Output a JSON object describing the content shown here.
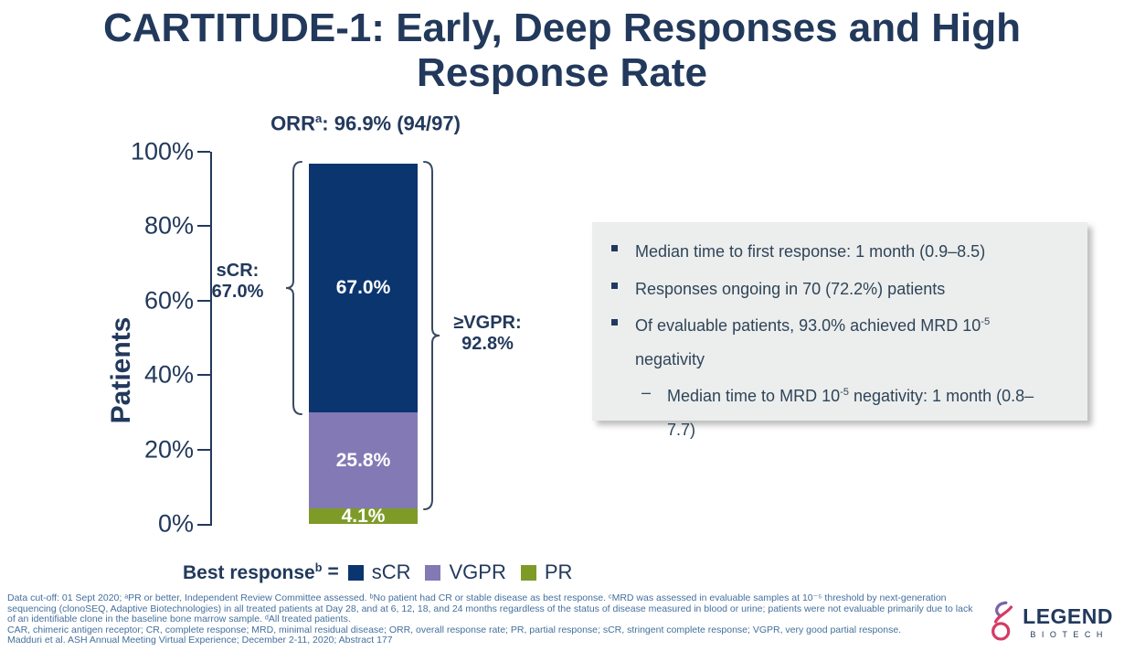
{
  "slide": {
    "title": "CARTITUDE-1: Early, Deep Responses and High Response Rate"
  },
  "chart": {
    "orr": {
      "text": "ORR",
      "sup": "a",
      "rest": ": 96.9% (94/97)"
    },
    "ylabel": "Patients",
    "yticks": [
      "100%",
      "80%",
      "60%",
      "40%",
      "20%",
      "0%"
    ],
    "bracket_left": {
      "line1": "sCR:",
      "line2": "67.0%"
    },
    "bracket_right": {
      "line1": "≥VGPR:",
      "line2": "92.8%"
    }
  },
  "chart_data": {
    "type": "bar",
    "stacked": true,
    "categories": [
      "Best response"
    ],
    "series": [
      {
        "name": "sCR",
        "values": [
          67.0
        ],
        "label": "67.0%",
        "color": "#0B356F"
      },
      {
        "name": "VGPR",
        "values": [
          25.8
        ],
        "label": "25.8%",
        "color": "#8379B5"
      },
      {
        "name": "PR",
        "values": [
          4.1
        ],
        "label": "4.1%",
        "color": "#7E9B28"
      }
    ],
    "title": "ORRᵃ: 96.9% (94/97)",
    "xlabel": "",
    "ylabel": "Patients",
    "ylim": [
      0,
      100
    ],
    "yticks_percent": [
      0,
      20,
      40,
      60,
      80,
      100
    ],
    "grid": false,
    "legend_position": "bottom",
    "annotations": [
      {
        "target": "sCR segment",
        "text": "sCR: 67.0%"
      },
      {
        "target": "sCR+VGPR segments",
        "text": "≥VGPR: 92.8%"
      },
      {
        "target": "total bar",
        "text": "ORRᵃ: 96.9% (94/97)"
      }
    ]
  },
  "infobox": {
    "bullets": [
      {
        "pre": "Median time to first response: 1 month (0.9–8.5)",
        "sup": "",
        "post": ""
      },
      {
        "pre": "Responses ongoing in 70 (72.2%) patients",
        "sup": "",
        "post": ""
      },
      {
        "pre": "Of evaluable patients, 93.0% achieved MRD 10",
        "sup": "-5",
        "post": " negativity"
      }
    ],
    "sub_bullet": {
      "dash": "–",
      "pre": "Median time to MRD 10",
      "sup": "-5",
      "post": " negativity: 1 month (0.8–7.7)"
    }
  },
  "legend": {
    "title": "Best response",
    "title_sup": "b",
    "equals": "=",
    "items": [
      {
        "label": "sCR"
      },
      {
        "label": "VGPR"
      },
      {
        "label": "PR"
      }
    ]
  },
  "footnotes": {
    "lines": [
      "Data cut-off: 01 Sept 2020; ᵃPR or better, Independent Review Committee assessed. ᵇNo patient had CR or stable disease as best response. ᶜMRD was assessed in evaluable samples at 10⁻⁵ threshold by next-generation",
      "sequencing (clonoSEQ, Adaptive Biotechnologies) in all treated patients at Day 28, and at 6, 12, 18, and 24 months regardless of the status of disease measured in blood or urine; patients were not evaluable primarily due to lack",
      "of an identifiable clone in the baseline bone marrow sample. ᵈAll treated patients.",
      "CAR, chimeric antigen receptor; CR, complete response; MRD, minimal residual disease; ORR, overall response rate; PR, partial response; sCR, stringent complete response; VGPR, very good partial response.",
      "Madduri et al. ASH Annual Meeting Virtual Experience; December 2-11, 2020; Abstract 177"
    ]
  },
  "logo": {
    "name": "LEGEND",
    "sub": "BIOTECH"
  },
  "colors": {
    "title_navy": "#22395C",
    "bar_scr": "#0B356F",
    "bar_vgpr": "#8379B5",
    "bar_pr": "#7E9B28",
    "footnote_blue": "#44709D",
    "infobox_bg": "#ECEDED",
    "infobox_text": "#2E4558"
  }
}
